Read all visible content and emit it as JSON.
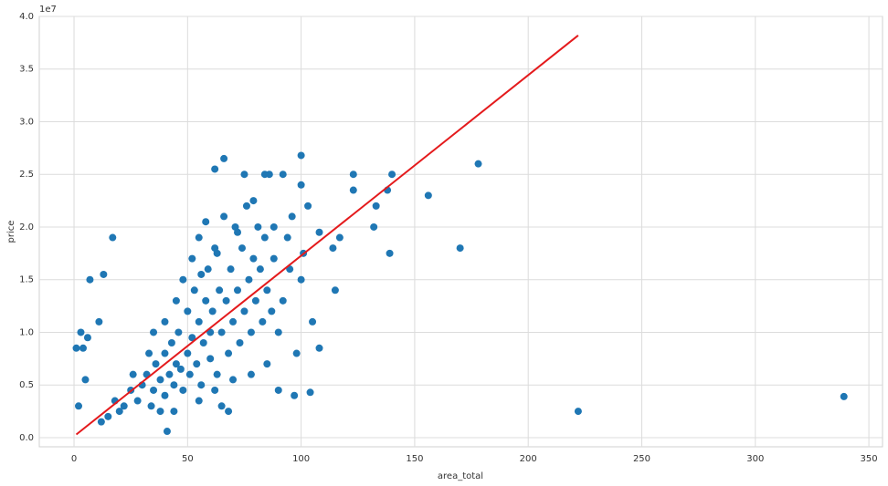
{
  "chart_data": {
    "type": "scatter",
    "xlabel": "area_total",
    "ylabel": "price",
    "y_offset_label": "1e7",
    "xlim": [
      -15.3,
      356
    ],
    "ylim": [
      -0.087,
      4.0
    ],
    "xticks": [
      0,
      50,
      100,
      150,
      200,
      250,
      300,
      350
    ],
    "yticks": [
      {
        "value": 0,
        "label": "0.0"
      },
      {
        "value": 0.5,
        "label": "0.5"
      },
      {
        "value": 1,
        "label": "1.0"
      },
      {
        "value": 1.5,
        "label": "1.5"
      },
      {
        "value": 2,
        "label": "2.0"
      },
      {
        "value": 2.5,
        "label": "2.5"
      },
      {
        "value": 3,
        "label": "3.0"
      },
      {
        "value": 3.5,
        "label": "3.5"
      },
      {
        "value": 4,
        "label": "4.0"
      }
    ],
    "grid": true,
    "series": [
      {
        "type": "scatter",
        "color": "#1f77b4",
        "x": [
          30,
          32,
          35,
          36,
          38,
          40,
          40,
          42,
          43,
          44,
          45,
          46,
          47,
          48,
          50,
          50,
          51,
          52,
          53,
          54,
          55,
          56,
          57,
          58,
          59,
          60,
          60,
          61,
          62,
          63,
          64,
          65,
          66,
          67,
          68,
          69,
          70,
          71,
          72,
          73,
          74,
          75,
          76,
          77,
          78,
          79,
          80,
          81,
          82,
          83,
          84,
          85,
          86,
          87,
          88,
          90,
          92,
          95,
          98,
          100,
          100,
          103,
          105,
          108,
          108,
          66,
          75,
          84,
          62,
          92,
          35,
          40,
          45,
          48,
          52,
          55,
          58,
          25,
          22,
          20,
          18,
          15,
          12,
          28,
          34,
          38,
          26,
          33,
          44,
          55,
          65,
          68,
          70,
          78,
          90,
          97,
          85,
          62,
          56,
          63,
          72,
          79,
          88,
          94,
          101,
          96,
          339,
          222,
          178,
          170,
          156,
          139,
          140,
          138,
          133,
          132,
          123,
          123,
          117,
          115,
          114,
          104,
          100,
          17,
          7,
          13,
          11,
          1,
          3,
          4,
          6,
          5,
          2,
          41
        ],
        "values": [
          0.5,
          0.6,
          0.45,
          0.7,
          0.55,
          0.8,
          0.4,
          0.6,
          0.9,
          0.5,
          0.7,
          1.0,
          0.65,
          0.45,
          0.8,
          1.2,
          0.6,
          0.95,
          1.4,
          0.7,
          1.1,
          0.5,
          0.9,
          1.3,
          1.6,
          1.0,
          0.75,
          1.2,
          1.8,
          0.6,
          1.4,
          1.0,
          2.1,
          1.3,
          0.8,
          1.6,
          1.1,
          2.0,
          1.4,
          0.9,
          1.8,
          1.2,
          2.2,
          1.5,
          1.0,
          1.7,
          1.3,
          2.0,
          1.6,
          1.1,
          1.9,
          1.4,
          2.5,
          1.2,
          1.7,
          1.0,
          1.3,
          1.6,
          0.8,
          1.5,
          2.4,
          2.2,
          1.1,
          1.95,
          0.85,
          2.65,
          2.5,
          2.5,
          2.55,
          2.5,
          1.0,
          1.1,
          1.3,
          1.5,
          1.7,
          1.9,
          2.05,
          0.45,
          0.3,
          0.25,
          0.35,
          0.2,
          0.15,
          0.35,
          0.3,
          0.25,
          0.6,
          0.8,
          0.25,
          0.35,
          0.3,
          0.25,
          0.55,
          0.6,
          0.45,
          0.4,
          0.7,
          0.45,
          1.55,
          1.75,
          1.95,
          2.25,
          2.0,
          1.9,
          1.75,
          2.1,
          0.39,
          0.25,
          2.6,
          1.8,
          2.3,
          1.75,
          2.5,
          2.35,
          2.2,
          2.0,
          2.5,
          2.35,
          1.9,
          1.4,
          1.8,
          0.43,
          2.68,
          1.9,
          1.5,
          1.55,
          1.1,
          0.85,
          1.0,
          0.85,
          0.95,
          0.55,
          0.3,
          0.06
        ]
      },
      {
        "type": "line",
        "color": "#e41a1c",
        "x": [
          1,
          222
        ],
        "values": [
          0.03,
          3.82
        ]
      }
    ]
  }
}
